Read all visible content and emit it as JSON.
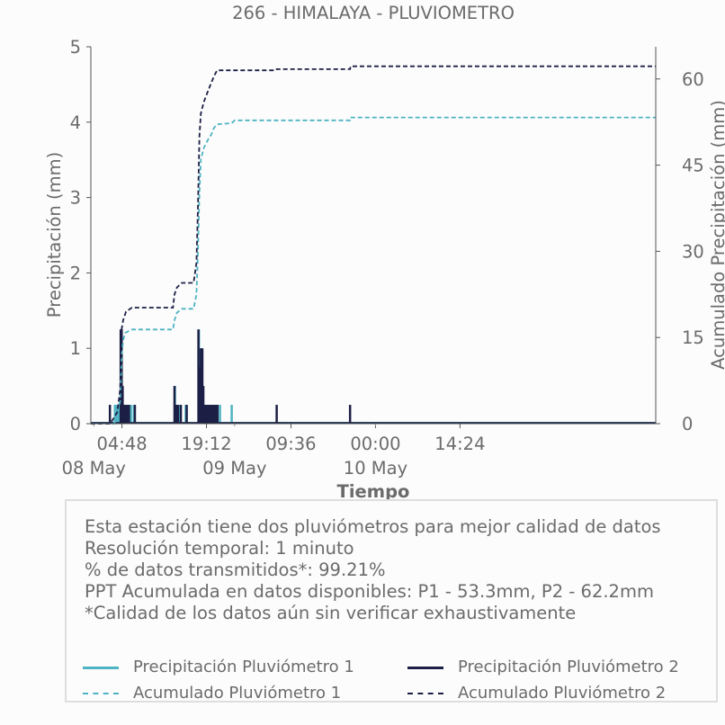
{
  "chart_data": {
    "type": "line",
    "title": "266 - HIMALAYA - PLUVIOMETRO",
    "xlabel": "Tiempo",
    "ylabel": "Precipitación (mm)",
    "y2label": "Acumulado Precipitación (mm)",
    "ylim": [
      0,
      5
    ],
    "y2lim": [
      0,
      65.6
    ],
    "yticks": [
      "0",
      "1",
      "2",
      "3",
      "4",
      "5"
    ],
    "y2ticks": [
      "0",
      "15",
      "30",
      "45",
      "60"
    ],
    "xlim": [
      "2025-05-07 23:30",
      "2025-05-11 23:45"
    ],
    "xticks_time": [
      "04:48",
      "19:12",
      "09:36",
      "00:00",
      "14:24"
    ],
    "xticks_date": [
      "08 May",
      "09 May",
      "10 May"
    ],
    "grid": false,
    "series": [
      {
        "name": "Precipitación Pluviómetro 1",
        "axis": "left",
        "style": "solid",
        "color": "#4eb3c3",
        "bars": [
          [
            "2025-05-08 03:36",
            0.25
          ],
          [
            "2025-05-08 03:50",
            0.25
          ],
          [
            "2025-05-08 04:00",
            0.25
          ],
          [
            "2025-05-08 04:10",
            0.25
          ],
          [
            "2025-05-08 04:20",
            0.25
          ],
          [
            "2025-05-08 04:40",
            1.25
          ],
          [
            "2025-05-08 04:50",
            0.5
          ],
          [
            "2025-05-08 05:10",
            0.25
          ],
          [
            "2025-05-08 05:30",
            0.25
          ],
          [
            "2025-05-08 06:20",
            0.25
          ],
          [
            "2025-05-08 06:50",
            0.25
          ],
          [
            "2025-05-08 13:50",
            0.5
          ],
          [
            "2025-05-08 14:10",
            0.25
          ],
          [
            "2025-05-08 14:40",
            0.25
          ],
          [
            "2025-05-08 15:40",
            0.25
          ],
          [
            "2025-05-08 17:55",
            1.25
          ],
          [
            "2025-05-08 18:10",
            1.0
          ],
          [
            "2025-05-08 18:25",
            1.0
          ],
          [
            "2025-05-08 18:35",
            0.5
          ],
          [
            "2025-05-08 18:50",
            0.25
          ],
          [
            "2025-05-08 19:05",
            0.25
          ],
          [
            "2025-05-08 19:20",
            0.25
          ],
          [
            "2025-05-08 19:35",
            0.25
          ],
          [
            "2025-05-08 19:50",
            0.25
          ],
          [
            "2025-05-08 20:05",
            0.25
          ],
          [
            "2025-05-08 20:20",
            0.25
          ],
          [
            "2025-05-08 20:40",
            0.25
          ],
          [
            "2025-05-08 21:00",
            0.25
          ],
          [
            "2025-05-08 21:30",
            0.25
          ],
          [
            "2025-05-08 23:30",
            0.25
          ]
        ]
      },
      {
        "name": "Precipitación Pluviómetro 2",
        "axis": "left",
        "style": "solid",
        "color": "#1c1f45",
        "bars": [
          [
            "2025-05-08 02:45",
            0.25
          ],
          [
            "2025-05-08 04:35",
            1.25
          ],
          [
            "2025-05-08 04:45",
            1.25
          ],
          [
            "2025-05-08 04:55",
            0.5
          ],
          [
            "2025-05-08 05:05",
            0.25
          ],
          [
            "2025-05-08 05:20",
            0.25
          ],
          [
            "2025-05-08 05:40",
            0.25
          ],
          [
            "2025-05-08 06:00",
            0.25
          ],
          [
            "2025-05-08 07:00",
            0.25
          ],
          [
            "2025-05-08 13:45",
            0.5
          ],
          [
            "2025-05-08 14:00",
            0.25
          ],
          [
            "2025-05-08 14:20",
            0.25
          ],
          [
            "2025-05-08 14:50",
            0.25
          ],
          [
            "2025-05-08 15:50",
            0.25
          ],
          [
            "2025-05-08 17:50",
            1.25
          ],
          [
            "2025-05-08 18:05",
            0.75
          ],
          [
            "2025-05-08 18:15",
            1.0
          ],
          [
            "2025-05-08 18:30",
            1.0
          ],
          [
            "2025-05-08 18:40",
            0.5
          ],
          [
            "2025-05-08 18:55",
            0.25
          ],
          [
            "2025-05-08 19:10",
            0.25
          ],
          [
            "2025-05-08 19:25",
            0.25
          ],
          [
            "2025-05-08 19:40",
            0.25
          ],
          [
            "2025-05-08 19:55",
            0.25
          ],
          [
            "2025-05-08 20:10",
            0.25
          ],
          [
            "2025-05-08 20:25",
            0.25
          ],
          [
            "2025-05-08 20:45",
            0.25
          ],
          [
            "2025-05-08 21:05",
            0.25
          ],
          [
            "2025-05-09 07:10",
            0.25
          ],
          [
            "2025-05-09 19:40",
            0.25
          ]
        ]
      },
      {
        "name": "Acumulado Pluviómetro 1",
        "axis": "right",
        "style": "dashed",
        "color": "#4eb3c3",
        "points": [
          [
            "2025-05-07 23:30",
            0
          ],
          [
            "2025-05-08 03:30",
            0
          ],
          [
            "2025-05-08 04:00",
            1.5
          ],
          [
            "2025-05-08 04:30",
            4
          ],
          [
            "2025-05-08 04:45",
            12
          ],
          [
            "2025-05-08 05:00",
            14.5
          ],
          [
            "2025-05-08 05:20",
            15.8
          ],
          [
            "2025-05-08 06:30",
            16.4
          ],
          [
            "2025-05-08 13:30",
            16.4
          ],
          [
            "2025-05-08 13:45",
            18
          ],
          [
            "2025-05-08 14:10",
            19.3
          ],
          [
            "2025-05-08 15:00",
            20
          ],
          [
            "2025-05-08 17:00",
            20
          ],
          [
            "2025-05-08 17:30",
            22.5
          ],
          [
            "2025-05-08 17:45",
            30
          ],
          [
            "2025-05-08 18:00",
            40
          ],
          [
            "2025-05-08 18:15",
            46
          ],
          [
            "2025-05-08 18:45",
            48
          ],
          [
            "2025-05-08 19:30",
            49.5
          ],
          [
            "2025-05-08 20:00",
            50.3
          ],
          [
            "2025-05-08 20:30",
            51.5
          ],
          [
            "2025-05-08 21:00",
            52.1
          ],
          [
            "2025-05-08 23:30",
            52.3
          ],
          [
            "2025-05-09 00:00",
            52.8
          ],
          [
            "2025-05-09 19:40",
            52.8
          ],
          [
            "2025-05-09 19:45",
            53.3
          ],
          [
            "2025-05-11 23:45",
            53.3
          ]
        ]
      },
      {
        "name": "Acumulado Pluviómetro 2",
        "axis": "right",
        "style": "dashed",
        "color": "#1c1f45",
        "points": [
          [
            "2025-05-07 23:30",
            0
          ],
          [
            "2025-05-08 02:40",
            0
          ],
          [
            "2025-05-08 03:00",
            0.3
          ],
          [
            "2025-05-08 04:00",
            2
          ],
          [
            "2025-05-08 04:30",
            6
          ],
          [
            "2025-05-08 04:45",
            16.5
          ],
          [
            "2025-05-08 05:00",
            18
          ],
          [
            "2025-05-08 05:30",
            19.5
          ],
          [
            "2025-05-08 06:30",
            20.2
          ],
          [
            "2025-05-08 13:30",
            20.2
          ],
          [
            "2025-05-08 13:45",
            22.5
          ],
          [
            "2025-05-08 14:10",
            23.7
          ],
          [
            "2025-05-08 15:00",
            24.5
          ],
          [
            "2025-05-08 17:00",
            24.5
          ],
          [
            "2025-05-08 17:30",
            28
          ],
          [
            "2025-05-08 17:45",
            38
          ],
          [
            "2025-05-08 18:00",
            50
          ],
          [
            "2025-05-08 18:15",
            54
          ],
          [
            "2025-05-08 18:45",
            56
          ],
          [
            "2025-05-08 19:30",
            58
          ],
          [
            "2025-05-08 20:00",
            59.3
          ],
          [
            "2025-05-08 20:30",
            60.5
          ],
          [
            "2025-05-08 21:00",
            61.5
          ],
          [
            "2025-05-09 07:00",
            61.5
          ],
          [
            "2025-05-09 07:10",
            61.7
          ],
          [
            "2025-05-09 19:40",
            61.7
          ],
          [
            "2025-05-09 19:45",
            62.2
          ],
          [
            "2025-05-11 23:45",
            62.2
          ]
        ]
      }
    ]
  },
  "info": {
    "lines": [
      "Esta estación tiene dos pluviómetros para mejor calidad de datos",
      "Resolución temporal: 1 minuto",
      "% de datos transmitidos*: 99.21%",
      "PPT Acumulada en datos disponibles: P1 - 53.3mm, P2 - 62.2mm",
      "*Calidad de los datos aún sin verificar exhaustivamente"
    ]
  },
  "legend": {
    "items": [
      {
        "label": "Precipitación Pluviómetro 1",
        "color": "#4eb3c3",
        "style": "solid"
      },
      {
        "label": "Precipitación Pluviómetro 2",
        "color": "#1c1f45",
        "style": "solid"
      },
      {
        "label": "Acumulado Pluviómetro 1",
        "color": "#4eb3c3",
        "style": "dashed"
      },
      {
        "label": "Acumulado Pluviómetro 2",
        "color": "#1c1f45",
        "style": "dashed"
      }
    ]
  }
}
